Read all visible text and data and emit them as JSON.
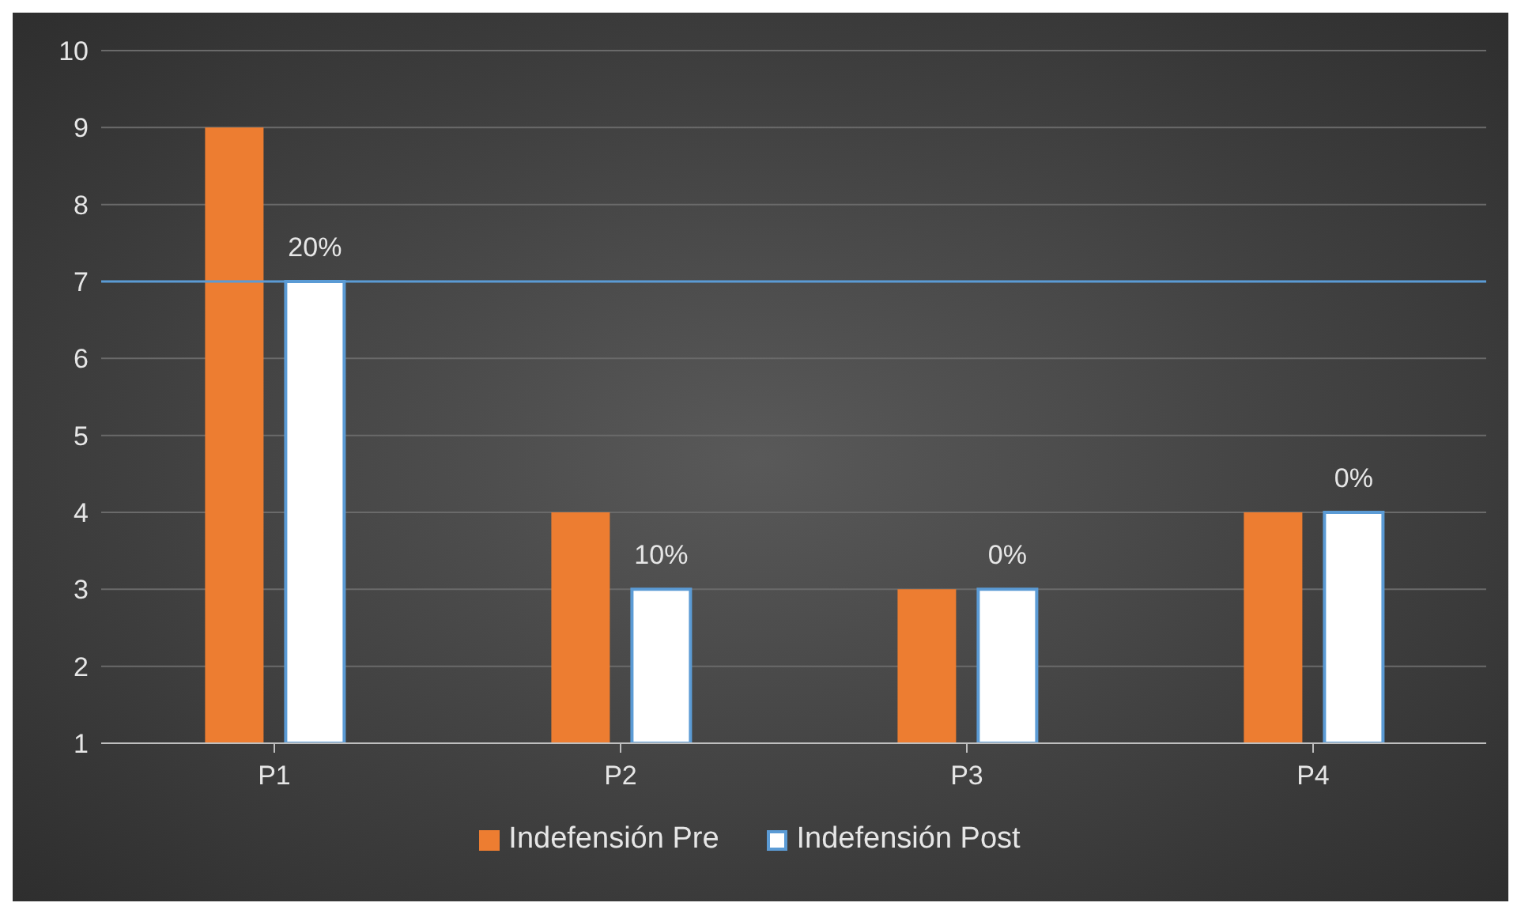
{
  "chart_data": {
    "type": "bar",
    "categories": [
      "P1",
      "P2",
      "P3",
      "P4"
    ],
    "series": [
      {
        "name": "Indefensión Pre",
        "color": "#ed7d31",
        "values": [
          9,
          4,
          3,
          4
        ]
      },
      {
        "name": "Indefensión Post",
        "color": "#ffffff",
        "values": [
          7,
          3,
          3,
          4
        ]
      }
    ],
    "annotations": [
      "20%",
      "10%",
      "0%",
      "0%"
    ],
    "ylim": [
      1,
      10
    ],
    "yticks": [
      1,
      2,
      3,
      4,
      5,
      6,
      7,
      8,
      9,
      10
    ],
    "grid": "y",
    "legend": "bottom",
    "ref_lines": [
      {
        "axis": "y",
        "value": 7,
        "color": "#5b9bd5"
      }
    ]
  }
}
